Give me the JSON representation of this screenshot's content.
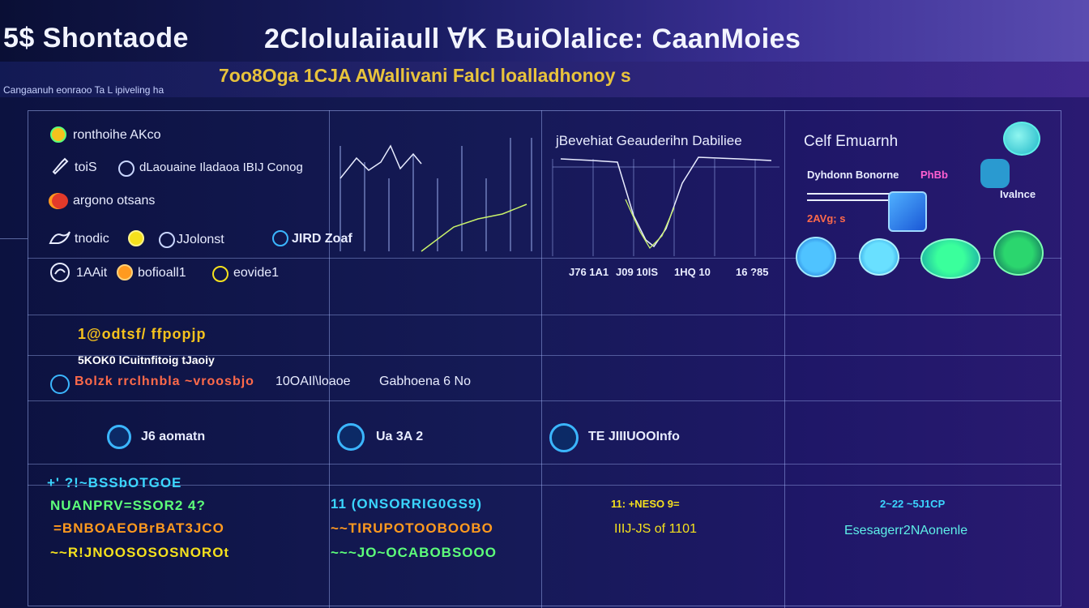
{
  "header": {
    "title_left": "5$ Shontaode",
    "title_right": "2Clolulaiiaull ⱯK BuiOlalice: CaanMoies",
    "subtitle": "7oo8Oga 1CJA AWallivani Falcl loalladhonoy s",
    "small_caption": "Cangaanuh eonraoo Ta L ipiveling ha"
  },
  "panels": {
    "left_list": {
      "items": [
        {
          "label": "ronthoihe AKco",
          "icon": "leaf-icon"
        },
        {
          "label": "toiS",
          "icon": "wrench-icon"
        },
        {
          "label": "dLaouaine Iladaoa IBIJ Conog",
          "icon": "ring-icon"
        },
        {
          "label": "argono otsans",
          "icon": "bird-icon"
        },
        {
          "label": "tnodic",
          "icon": "bird-icon"
        },
        {
          "label": "JJolonst",
          "icon": "ring-icon"
        },
        {
          "label": "1AAit",
          "icon": "bird-icon"
        },
        {
          "label": "bofioall1",
          "icon": "coin-icon"
        },
        {
          "label": "eovide1",
          "icon": "ring-icon"
        }
      ],
      "chart_label": "JIRD Zoaf"
    },
    "center_chart": {
      "title": "jBevehiat Geauderihn Dabiliee",
      "axis_labels": [
        "J76 1A1",
        "J09 10lS",
        "1HQ 10",
        "16 ?85"
      ]
    },
    "right_panel": {
      "title": "Celf Emuarnh",
      "line1": "Dyhdonn Bonorne",
      "line1_tag": "PhBb",
      "line2": "Ivalnce",
      "line3": "2AVg; s"
    },
    "row2": {
      "line1": "1@odtsf/ ffpopjp",
      "line2": "5KOK0 lCuitnfitoig tJaoiy",
      "line3a": "Bolzk rrclhnbla ~vroosbjo",
      "line3b": "10OAIl\\loaoe",
      "line3c": "Gabhoena 6 No"
    },
    "row3": [
      {
        "label": "J6 aomatn"
      },
      {
        "label": "Ua 3A 2"
      },
      {
        "label": "TE JIIIUOOInfo"
      }
    ],
    "row4": {
      "col1": [
        "+' ?!~BSSbOTGOE",
        "NUANPRV=SSOR2 4?",
        "=BNBOAEOBrBAT3JCO",
        "~~R!JNOOSOSOSNOROt"
      ],
      "col2": [
        "11 (ONSORRIG0GS9)",
        "~~TIRUPOTOOBOOBO",
        "~~~JO~OCABOBSOOO"
      ],
      "col3a": "11: +NESO 9=",
      "col3b": "IIIJ-JS of 1101",
      "col4a": "2~22 ~5J1CP",
      "col4b": "Esesagerr2NAonenle"
    }
  },
  "colors": {
    "accent_blue": "#3bb6ff",
    "accent_orange": "#ff9a1f",
    "accent_green": "#5dff7a",
    "accent_yellow": "#f5e11d",
    "accent_magenta": "#ff5fd0"
  }
}
